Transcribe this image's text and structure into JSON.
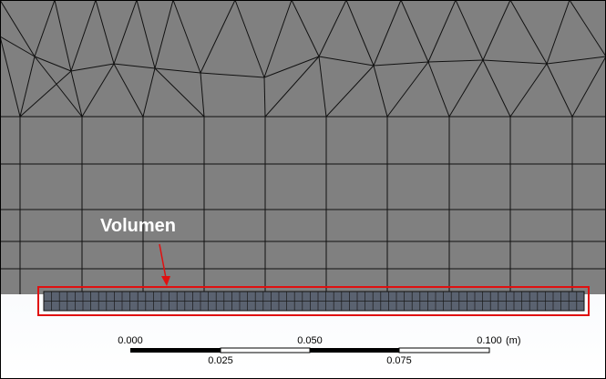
{
  "annotation": {
    "label": "Volumen"
  },
  "scale_bar": {
    "labels_top": [
      "0.000",
      "0.050",
      "0.100"
    ],
    "labels_bottom": [
      "0.025",
      "0.075"
    ],
    "unit": "(m)"
  }
}
